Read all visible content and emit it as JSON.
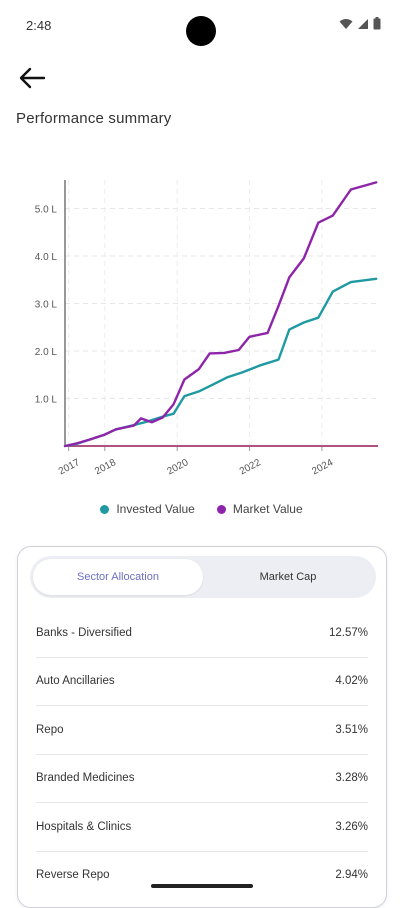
{
  "status_bar": {
    "time": "2:48"
  },
  "header": {
    "title": "Performance summary"
  },
  "legend": {
    "invested_label": "Invested Value",
    "market_label": "Market Value"
  },
  "colors": {
    "invested": "#1f9aa3",
    "market": "#8e24aa",
    "accent": "#6b6fc4"
  },
  "chart_data": {
    "type": "line",
    "y_ticks": [
      "1.0 L",
      "2.0 L",
      "3.0 L",
      "4.0 L",
      "5.0 L"
    ],
    "x_ticks": [
      "2017",
      "2018",
      "2020",
      "2022",
      "2024"
    ],
    "ylim": [
      0,
      5.6
    ],
    "xlim": [
      2016.9,
      2025.55
    ],
    "grid": true,
    "series": [
      {
        "name": "Invested Value",
        "points": [
          [
            2016.9,
            0.0
          ],
          [
            2017.2,
            0.04
          ],
          [
            2017.6,
            0.14
          ],
          [
            2018.0,
            0.24
          ],
          [
            2018.3,
            0.35
          ],
          [
            2018.8,
            0.44
          ],
          [
            2019.2,
            0.52
          ],
          [
            2019.6,
            0.62
          ],
          [
            2019.9,
            0.68
          ],
          [
            2020.2,
            1.05
          ],
          [
            2020.6,
            1.15
          ],
          [
            2021.0,
            1.3
          ],
          [
            2021.4,
            1.45
          ],
          [
            2021.8,
            1.55
          ],
          [
            2022.3,
            1.7
          ],
          [
            2022.8,
            1.82
          ],
          [
            2023.1,
            2.45
          ],
          [
            2023.5,
            2.6
          ],
          [
            2023.9,
            2.7
          ],
          [
            2024.3,
            3.25
          ],
          [
            2024.8,
            3.45
          ],
          [
            2025.5,
            3.52
          ]
        ]
      },
      {
        "name": "Market Value",
        "points": [
          [
            2016.9,
            0.0
          ],
          [
            2017.2,
            0.05
          ],
          [
            2017.6,
            0.14
          ],
          [
            2018.0,
            0.24
          ],
          [
            2018.3,
            0.35
          ],
          [
            2018.8,
            0.43
          ],
          [
            2019.0,
            0.58
          ],
          [
            2019.3,
            0.5
          ],
          [
            2019.6,
            0.6
          ],
          [
            2019.9,
            0.88
          ],
          [
            2020.2,
            1.4
          ],
          [
            2020.6,
            1.62
          ],
          [
            2020.9,
            1.95
          ],
          [
            2021.3,
            1.96
          ],
          [
            2021.7,
            2.02
          ],
          [
            2022.0,
            2.3
          ],
          [
            2022.5,
            2.38
          ],
          [
            2022.8,
            2.95
          ],
          [
            2023.1,
            3.55
          ],
          [
            2023.5,
            3.95
          ],
          [
            2023.9,
            4.7
          ],
          [
            2024.3,
            4.85
          ],
          [
            2024.8,
            5.4
          ],
          [
            2025.5,
            5.55
          ]
        ]
      }
    ]
  },
  "tabs": {
    "sector": "Sector Allocation",
    "market_cap": "Market Cap"
  },
  "sectors": [
    {
      "name": "Banks - Diversified",
      "value": "12.57%"
    },
    {
      "name": "Auto Ancillaries",
      "value": "4.02%"
    },
    {
      "name": "Repo",
      "value": "3.51%"
    },
    {
      "name": "Branded Medicines",
      "value": "3.28%"
    },
    {
      "name": "Hospitals & Clinics",
      "value": "3.26%"
    },
    {
      "name": "Reverse Repo",
      "value": "2.94%"
    }
  ]
}
